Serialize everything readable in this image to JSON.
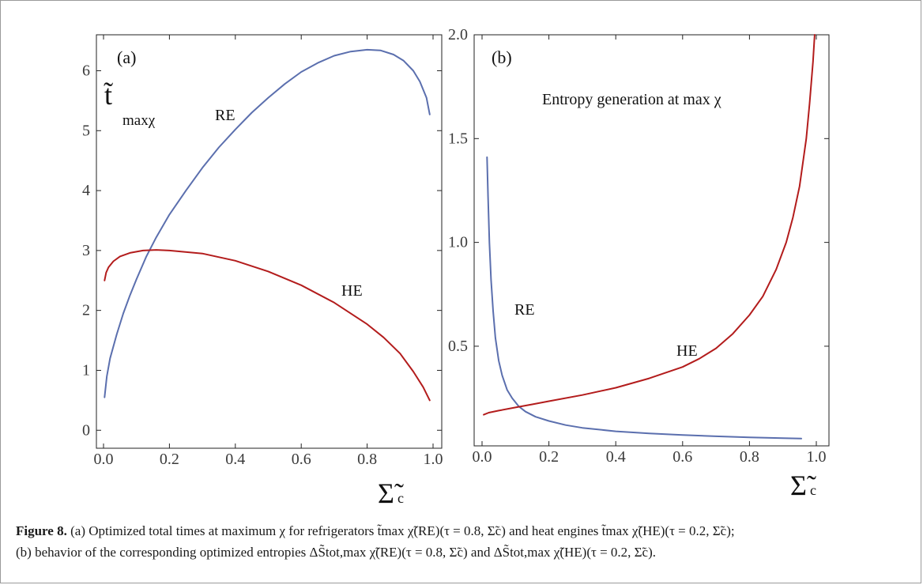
{
  "figure": {
    "label": "Figure 8.",
    "caption_line1": "(a) Optimized total times at maximum χ for refrigerators t̃max χ̃(RE)(τ = 0.8, Σ̃c) and heat engines t̃max χ̃(HE)(τ = 0.2, Σ̃c);",
    "caption_line2": "(b) behavior of the corresponding optimized entropies ΔS̃tot,max χ̃(RE)(τ = 0.8, Σ̃c) and ΔS̃tot,max χ̃(HE)(τ = 0.2, Σ̃c)."
  },
  "colors": {
    "RE": "#5b6fae",
    "HE": "#b31c1c",
    "axis": "#222222"
  },
  "chart_data": [
    {
      "type": "line",
      "panel_label": "(a)",
      "ylabel": "t̃",
      "ylabel_sub": "maxχ",
      "xlabel": "Σ̃",
      "xlabel_sub": "c",
      "xlim": [
        0,
        1
      ],
      "ylim": [
        -0.3,
        6.6
      ],
      "xticks": [
        0.0,
        0.2,
        0.4,
        0.6,
        0.8,
        1.0
      ],
      "xtick_labels": [
        "0.0",
        "0.2",
        "0.4",
        "0.6",
        "0.8",
        "1.0"
      ],
      "yticks": [
        0,
        1,
        2,
        3,
        4,
        5,
        6
      ],
      "ytick_labels": [
        "0",
        "1",
        "2",
        "3",
        "4",
        "5",
        "6"
      ],
      "series": [
        {
          "name": "RE",
          "color": "#5b6fae",
          "x": [
            0.003,
            0.01,
            0.02,
            0.04,
            0.06,
            0.08,
            0.1,
            0.13,
            0.16,
            0.2,
            0.25,
            0.3,
            0.35,
            0.4,
            0.45,
            0.5,
            0.55,
            0.6,
            0.65,
            0.7,
            0.75,
            0.8,
            0.84,
            0.88,
            0.91,
            0.94,
            0.96,
            0.98,
            0.99
          ],
          "y": [
            0.55,
            0.9,
            1.2,
            1.6,
            1.95,
            2.25,
            2.52,
            2.9,
            3.22,
            3.6,
            4.0,
            4.38,
            4.72,
            5.02,
            5.3,
            5.55,
            5.78,
            5.98,
            6.13,
            6.25,
            6.32,
            6.35,
            6.34,
            6.27,
            6.17,
            6.0,
            5.82,
            5.55,
            5.27
          ]
        },
        {
          "name": "HE",
          "color": "#b31c1c",
          "x": [
            0.003,
            0.008,
            0.015,
            0.03,
            0.05,
            0.08,
            0.12,
            0.16,
            0.2,
            0.3,
            0.4,
            0.5,
            0.6,
            0.7,
            0.8,
            0.85,
            0.9,
            0.94,
            0.97,
            0.99
          ],
          "y": [
            2.5,
            2.63,
            2.72,
            2.82,
            2.9,
            2.96,
            3.0,
            3.01,
            3.0,
            2.95,
            2.83,
            2.65,
            2.42,
            2.13,
            1.77,
            1.55,
            1.28,
            0.98,
            0.72,
            0.5
          ]
        }
      ],
      "annotations": []
    },
    {
      "type": "line",
      "panel_label": "(b)",
      "ylabel": "",
      "xlabel": "Σ̃",
      "xlabel_sub": "c",
      "xlim": [
        0,
        1
      ],
      "ylim": [
        0.02,
        2.0
      ],
      "xticks": [
        0.0,
        0.2,
        0.4,
        0.6,
        0.8,
        1.0
      ],
      "xtick_labels": [
        "0.0",
        "0.2",
        "0.4",
        "0.6",
        "0.8",
        "1.0"
      ],
      "yticks": [
        0.5,
        1.0,
        1.5,
        2.0
      ],
      "ytick_labels": [
        "0.5",
        "1.0",
        "1.5",
        "2.0"
      ],
      "series": [
        {
          "name": "RE",
          "color": "#5b6fae",
          "x": [
            0.015,
            0.018,
            0.022,
            0.027,
            0.033,
            0.04,
            0.05,
            0.06,
            0.075,
            0.09,
            0.11,
            0.13,
            0.16,
            0.2,
            0.25,
            0.3,
            0.4,
            0.5,
            0.6,
            0.7,
            0.8,
            0.9,
            0.955
          ],
          "y": [
            1.41,
            1.22,
            1.0,
            0.82,
            0.67,
            0.54,
            0.43,
            0.36,
            0.29,
            0.25,
            0.21,
            0.185,
            0.16,
            0.14,
            0.12,
            0.107,
            0.09,
            0.08,
            0.072,
            0.066,
            0.061,
            0.057,
            0.055
          ]
        },
        {
          "name": "HE",
          "color": "#b31c1c",
          "x": [
            0.005,
            0.02,
            0.05,
            0.1,
            0.15,
            0.2,
            0.3,
            0.4,
            0.5,
            0.6,
            0.65,
            0.7,
            0.75,
            0.8,
            0.84,
            0.88,
            0.91,
            0.93,
            0.95,
            0.97,
            0.98,
            0.99,
            0.995
          ],
          "y": [
            0.17,
            0.18,
            0.19,
            0.205,
            0.22,
            0.235,
            0.265,
            0.3,
            0.345,
            0.4,
            0.44,
            0.49,
            0.56,
            0.65,
            0.74,
            0.87,
            1.0,
            1.12,
            1.27,
            1.5,
            1.67,
            1.87,
            2.0
          ]
        }
      ],
      "annotations": [
        {
          "text": "Entropy generation at max χ"
        }
      ]
    }
  ]
}
